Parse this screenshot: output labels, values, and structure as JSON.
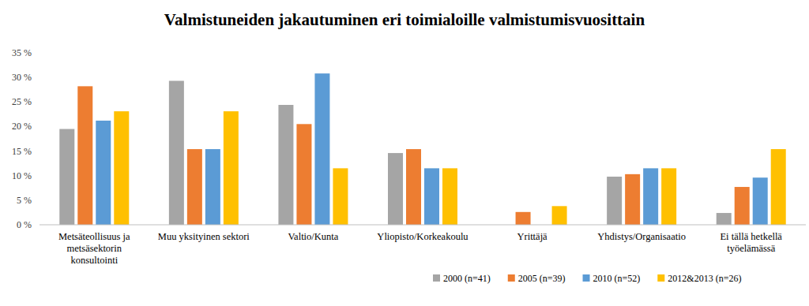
{
  "chart_data": {
    "type": "bar",
    "title": "Valmistuneiden jakautuminen eri toimialoille valmistumisvuosittain",
    "categories": [
      "Metsäteollisuus ja metsäsektorin konsultointi",
      "Muu yksityinen sektori",
      "Valtio/Kunta",
      "Yliopisto/Korkeakoulu",
      "Yrittäjä",
      "Yhdistys/Organisaatio",
      "Ei tällä hetkellä työelämässä"
    ],
    "series": [
      {
        "name": "2000 (n=41)",
        "color": "#a5a5a5",
        "values": [
          19.5,
          29.3,
          24.4,
          14.6,
          0,
          9.8,
          2.4
        ]
      },
      {
        "name": "2005 (n=39)",
        "color": "#ed7d31",
        "values": [
          28.2,
          15.4,
          20.5,
          15.4,
          2.6,
          10.3,
          7.7
        ]
      },
      {
        "name": "2010 (n=52)",
        "color": "#5b9bd5",
        "values": [
          21.2,
          15.4,
          30.8,
          11.5,
          0,
          11.5,
          9.6
        ]
      },
      {
        "name": "2012&2013 (n=26)",
        "color": "#ffc000",
        "values": [
          23.1,
          23.1,
          11.5,
          11.5,
          3.8,
          11.5,
          15.4
        ]
      }
    ],
    "ylim": [
      0,
      35
    ],
    "yticks": [
      {
        "value": 0,
        "label": "0 %"
      },
      {
        "value": 5,
        "label": "5 %"
      },
      {
        "value": 10,
        "label": "10 %"
      },
      {
        "value": 15,
        "label": "15 %"
      },
      {
        "value": 20,
        "label": "20 %"
      },
      {
        "value": 25,
        "label": "25 %"
      },
      {
        "value": 30,
        "label": "30 %"
      },
      {
        "value": 35,
        "label": "35 %"
      }
    ],
    "grid": false,
    "legend": "bottom-right"
  }
}
